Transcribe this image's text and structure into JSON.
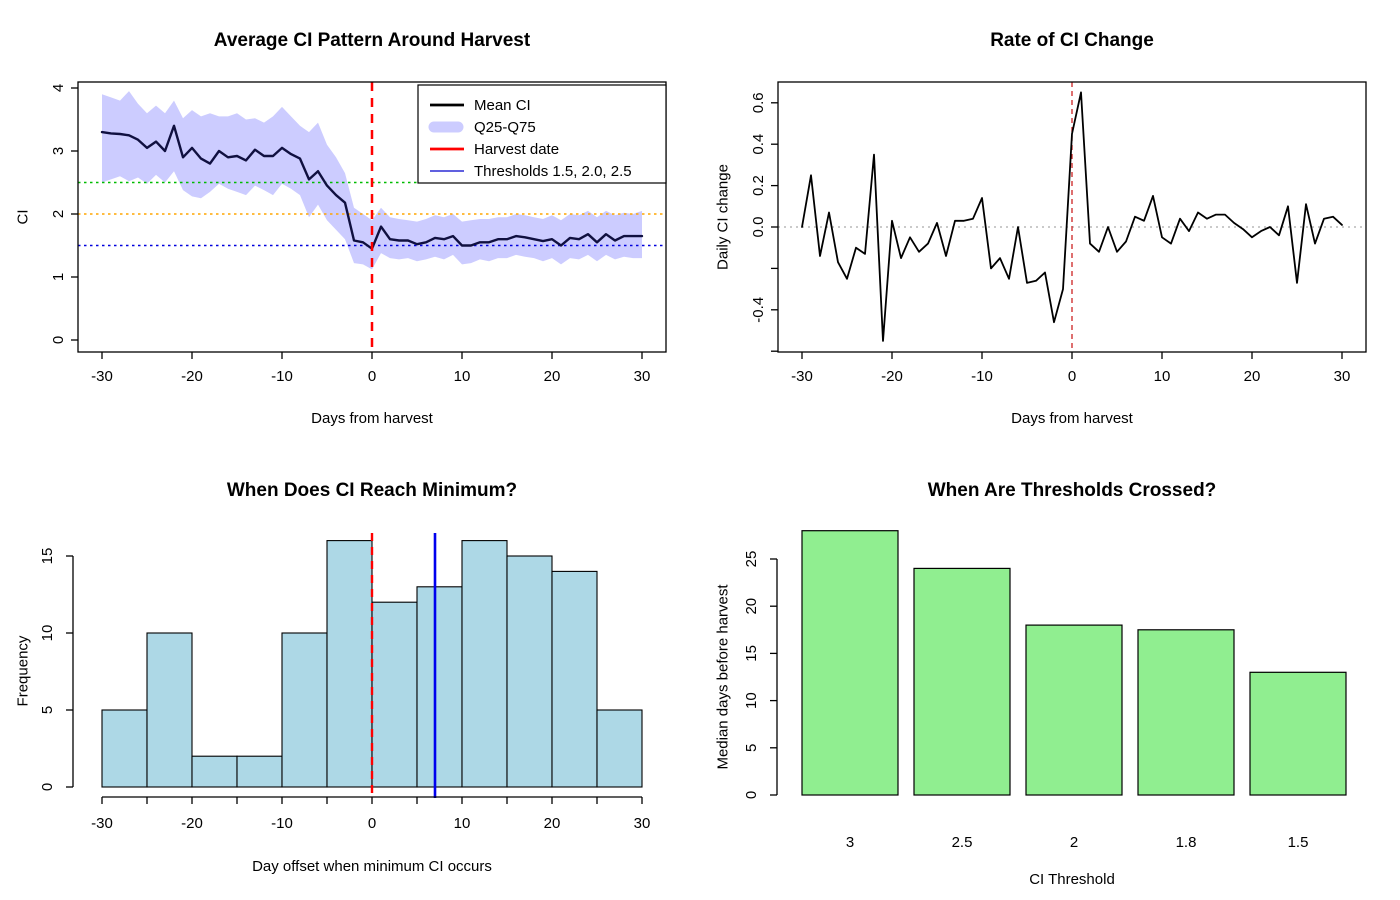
{
  "figure": {
    "background": "#ffffff"
  },
  "chart_data": [
    {
      "type": "line",
      "title": "Average CI Pattern Around Harvest",
      "xlabel": "Days from harvest",
      "ylabel": "CI",
      "x_range": [
        -30,
        30
      ],
      "x_step": 1,
      "ylim": [
        0,
        4
      ],
      "x_ticks": [
        {
          "v": -30,
          "label": "-30"
        },
        {
          "v": -20,
          "label": "-20"
        },
        {
          "v": -10,
          "label": "-10"
        },
        {
          "v": 0,
          "label": "0"
        },
        {
          "v": 10,
          "label": "10"
        },
        {
          "v": 20,
          "label": "20"
        },
        {
          "v": 30,
          "label": "30"
        }
      ],
      "y_ticks": [
        {
          "v": 0,
          "label": "0"
        },
        {
          "v": 1,
          "label": "1"
        },
        {
          "v": 2,
          "label": "2"
        },
        {
          "v": 3,
          "label": "3"
        },
        {
          "v": 4,
          "label": "4"
        }
      ],
      "mean_ci": [
        3.3,
        3.28,
        3.27,
        3.25,
        3.18,
        3.05,
        3.15,
        3.0,
        3.4,
        2.9,
        3.05,
        2.88,
        2.8,
        3.0,
        2.9,
        2.92,
        2.85,
        3.02,
        2.92,
        2.92,
        3.05,
        2.95,
        2.88,
        2.55,
        2.68,
        2.45,
        2.3,
        2.18,
        1.58,
        1.55,
        1.45,
        1.8,
        1.6,
        1.58,
        1.58,
        1.52,
        1.55,
        1.62,
        1.6,
        1.65,
        1.5,
        1.5,
        1.55,
        1.55,
        1.6,
        1.6,
        1.65,
        1.63,
        1.6,
        1.57,
        1.6,
        1.5,
        1.62,
        1.6,
        1.68,
        1.55,
        1.68,
        1.58,
        1.65,
        1.65,
        1.65
      ],
      "q75": [
        3.9,
        3.85,
        3.8,
        3.95,
        3.75,
        3.6,
        3.72,
        3.6,
        3.8,
        3.52,
        3.65,
        3.55,
        3.6,
        3.55,
        3.55,
        3.6,
        3.5,
        3.52,
        3.45,
        3.55,
        3.7,
        3.55,
        3.4,
        3.3,
        3.45,
        3.1,
        2.9,
        2.65,
        2.1,
        2.0,
        1.9,
        2.1,
        1.95,
        1.92,
        1.9,
        1.88,
        1.92,
        1.98,
        1.95,
        2.0,
        1.88,
        1.9,
        1.92,
        1.92,
        1.95,
        1.95,
        2.0,
        1.98,
        1.95,
        1.92,
        1.98,
        1.9,
        2.0,
        1.98,
        2.05,
        1.95,
        2.05,
        1.98,
        2.02,
        2.0,
        2.05
      ],
      "q25": [
        2.5,
        2.55,
        2.6,
        2.52,
        2.58,
        2.48,
        2.62,
        2.5,
        2.68,
        2.38,
        2.28,
        2.25,
        2.35,
        2.48,
        2.4,
        2.35,
        2.3,
        2.45,
        2.38,
        2.3,
        2.48,
        2.4,
        2.3,
        1.95,
        2.15,
        1.9,
        1.75,
        1.6,
        1.22,
        1.2,
        1.12,
        1.38,
        1.3,
        1.28,
        1.3,
        1.25,
        1.28,
        1.32,
        1.28,
        1.35,
        1.2,
        1.22,
        1.28,
        1.25,
        1.3,
        1.3,
        1.35,
        1.32,
        1.3,
        1.25,
        1.3,
        1.2,
        1.3,
        1.28,
        1.35,
        1.25,
        1.35,
        1.28,
        1.32,
        1.3,
        1.3
      ],
      "band_color": "#ccccff",
      "line_color": "#101040",
      "thresholds": [
        {
          "value": 2.5,
          "color": "#00bb00"
        },
        {
          "value": 2.0,
          "color": "#ffa500"
        },
        {
          "value": 1.5,
          "color": "#0000dd"
        }
      ],
      "harvest_line": {
        "x": 0,
        "color": "#ff0000",
        "style": "dashed"
      },
      "legend": {
        "position": "topright",
        "items": [
          {
            "label": "Mean CI",
            "swatch": "line",
            "color": "#000000"
          },
          {
            "label": "Q25-Q75",
            "swatch": "band",
            "color": "#ccccff"
          },
          {
            "label": "Harvest date",
            "swatch": "line",
            "color": "#ff0000"
          },
          {
            "label": "Thresholds 1.5, 2.0, 2.5",
            "swatch": "thinline",
            "color": "#0000cc"
          }
        ]
      }
    },
    {
      "type": "line",
      "title": "Rate of CI Change",
      "xlabel": "Days from harvest",
      "ylabel": "Daily CI change",
      "x_range": [
        -30,
        30
      ],
      "x_step": 1,
      "ylim": [
        -0.6,
        0.7
      ],
      "x_ticks": [
        {
          "v": -30,
          "label": "-30"
        },
        {
          "v": -20,
          "label": "-20"
        },
        {
          "v": -10,
          "label": "-10"
        },
        {
          "v": 0,
          "label": "0"
        },
        {
          "v": 10,
          "label": "10"
        },
        {
          "v": 20,
          "label": "20"
        },
        {
          "v": 30,
          "label": "30"
        }
      ],
      "y_ticks": [
        {
          "v": 0.6,
          "label": "0.6"
        },
        {
          "v": 0.4,
          "label": "0.4"
        },
        {
          "v": 0.2,
          "label": "0.2"
        },
        {
          "v": 0.0,
          "label": "0.0"
        },
        {
          "v": -0.2,
          "label": ""
        },
        {
          "v": -0.4,
          "label": "-0.4"
        },
        {
          "v": -0.6,
          "label": ""
        }
      ],
      "values": [
        0.0,
        0.25,
        -0.14,
        0.07,
        -0.17,
        -0.25,
        -0.1,
        -0.13,
        0.35,
        -0.55,
        0.03,
        -0.15,
        -0.05,
        -0.12,
        -0.08,
        0.02,
        -0.14,
        0.03,
        0.03,
        0.04,
        0.14,
        -0.2,
        -0.15,
        -0.25,
        0.0,
        -0.27,
        -0.26,
        -0.22,
        -0.46,
        -0.3,
        0.45,
        0.65,
        -0.08,
        -0.12,
        0.0,
        -0.12,
        -0.07,
        0.05,
        0.03,
        0.15,
        -0.05,
        -0.08,
        0.04,
        -0.02,
        0.07,
        0.04,
        0.06,
        0.06,
        0.02,
        -0.01,
        -0.05,
        -0.02,
        0.0,
        -0.04,
        0.1,
        -0.27,
        0.11,
        -0.08,
        0.04,
        0.05,
        0.01
      ],
      "line_color": "#000000",
      "zero_line": {
        "y": 0,
        "color": "#aaaaaa",
        "style": "dotted"
      },
      "harvest_line": {
        "x": 0,
        "color": "#cc2222",
        "style": "dashed"
      }
    },
    {
      "type": "bar",
      "subtype": "histogram",
      "title": "When Does CI Reach Minimum?",
      "xlabel": "Day offset when minimum CI occurs",
      "ylabel": "Frequency",
      "bin_start": -30,
      "bin_width": 5,
      "counts": [
        5,
        10,
        2,
        2,
        10,
        16,
        12,
        13,
        16,
        15,
        14,
        5
      ],
      "bar_fill": "#add8e6",
      "bar_border": "#000000",
      "ylim": [
        0,
        16
      ],
      "x_ticks": [
        {
          "v": -30,
          "label": "-30"
        },
        {
          "v": -25,
          "label": ""
        },
        {
          "v": -20,
          "label": "-20"
        },
        {
          "v": -15,
          "label": ""
        },
        {
          "v": -10,
          "label": "-10"
        },
        {
          "v": -5,
          "label": ""
        },
        {
          "v": 0,
          "label": "0"
        },
        {
          "v": 5,
          "label": ""
        },
        {
          "v": 10,
          "label": "10"
        },
        {
          "v": 15,
          "label": ""
        },
        {
          "v": 20,
          "label": "20"
        },
        {
          "v": 25,
          "label": ""
        },
        {
          "v": 30,
          "label": "30"
        }
      ],
      "y_ticks": [
        {
          "v": 0,
          "label": "0"
        },
        {
          "v": 5,
          "label": "5"
        },
        {
          "v": 10,
          "label": "10"
        },
        {
          "v": 15,
          "label": "15"
        }
      ],
      "harvest_line": {
        "x": 0,
        "color": "#ff0000",
        "style": "dashed"
      },
      "median_line": {
        "x": 7,
        "color": "#0000ee",
        "style": "solid"
      }
    },
    {
      "type": "bar",
      "title": "When Are Thresholds Crossed?",
      "xlabel": "CI Threshold",
      "ylabel": "Median days before harvest",
      "categories": [
        "3",
        "2.5",
        "2",
        "1.8",
        "1.5"
      ],
      "values": [
        28,
        24,
        18,
        17.5,
        13
      ],
      "bar_fill": "#90ee90",
      "bar_border": "#000000",
      "ylim": [
        0,
        28
      ],
      "y_ticks": [
        {
          "v": 0,
          "label": "0"
        },
        {
          "v": 5,
          "label": "5"
        },
        {
          "v": 10,
          "label": "10"
        },
        {
          "v": 15,
          "label": "15"
        },
        {
          "v": 20,
          "label": "20"
        },
        {
          "v": 25,
          "label": "25"
        }
      ]
    }
  ]
}
